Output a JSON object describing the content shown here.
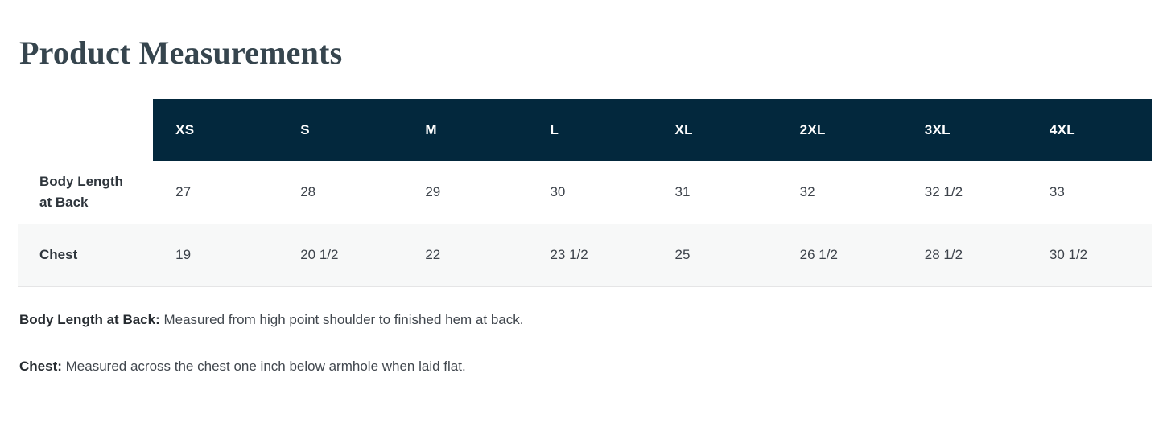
{
  "section": {
    "title": "Product Measurements"
  },
  "table": {
    "columns": [
      "XS",
      "S",
      "M",
      "L",
      "XL",
      "2XL",
      "3XL",
      "4XL"
    ],
    "body_length_row": {
      "label": "Body Length at Back",
      "label_line1": "Body Length",
      "label_line2": "at Back",
      "values": [
        "27",
        "28",
        "29",
        "30",
        "31",
        "32",
        "32 1/2",
        "33"
      ]
    },
    "chest_row": {
      "label": "Chest",
      "values": [
        "19",
        "20 1/2",
        "22",
        "23 1/2",
        "25",
        "26 1/2",
        "28 1/2",
        "30 1/2"
      ]
    }
  },
  "notes": [
    {
      "term": "Body Length at Back:",
      "definition": "Measured from high point shoulder to finished hem at back."
    },
    {
      "term": "Chest:",
      "definition": "Measured across the chest one inch below armhole when laid flat."
    }
  ],
  "colors": {
    "header_bg": "#03283d",
    "header_text": "#ffffff",
    "alt_row_bg": "#f7f8f8",
    "row_border": "#e5e5e6",
    "title_text": "#36454e",
    "body_text": "#3d434b"
  }
}
